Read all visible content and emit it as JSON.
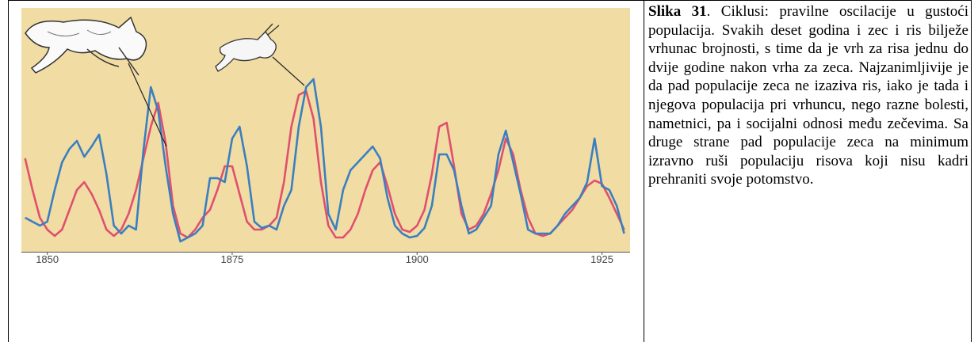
{
  "chart_data": {
    "type": "line",
    "x": [
      1847,
      1848,
      1849,
      1850,
      1851,
      1852,
      1853,
      1854,
      1855,
      1856,
      1857,
      1858,
      1859,
      1860,
      1861,
      1862,
      1863,
      1864,
      1865,
      1866,
      1867,
      1868,
      1869,
      1870,
      1871,
      1872,
      1873,
      1874,
      1875,
      1876,
      1877,
      1878,
      1879,
      1880,
      1881,
      1882,
      1883,
      1884,
      1885,
      1886,
      1887,
      1888,
      1889,
      1890,
      1891,
      1892,
      1893,
      1894,
      1895,
      1896,
      1897,
      1898,
      1899,
      1900,
      1901,
      1902,
      1903,
      1904,
      1905,
      1906,
      1907,
      1908,
      1909,
      1910,
      1911,
      1912,
      1913,
      1914,
      1915,
      1916,
      1917,
      1918,
      1919,
      1920,
      1921,
      1922,
      1923,
      1924,
      1925,
      1926,
      1927,
      1928
    ],
    "series": [
      {
        "color": "#3a7fc0",
        "values": [
          43,
          38,
          33,
          38,
          78,
          113,
          130,
          140,
          120,
          133,
          148,
          98,
          33,
          23,
          33,
          28,
          128,
          208,
          178,
          108,
          48,
          13,
          18,
          23,
          33,
          93,
          93,
          88,
          143,
          158,
          108,
          38,
          30,
          33,
          28,
          58,
          78,
          158,
          208,
          218,
          158,
          48,
          28,
          78,
          103,
          113,
          123,
          133,
          118,
          68,
          33,
          23,
          18,
          20,
          30,
          58,
          123,
          123,
          103,
          58,
          23,
          28,
          43,
          58,
          123,
          153,
          113,
          73,
          28,
          23,
          23,
          23,
          33,
          48,
          58,
          68,
          88,
          143,
          83,
          78,
          58,
          23
        ]
      },
      {
        "color": "#e0506e",
        "values": [
          118,
          78,
          43,
          28,
          20,
          28,
          53,
          78,
          88,
          73,
          53,
          28,
          20,
          28,
          48,
          78,
          118,
          158,
          188,
          138,
          58,
          23,
          18,
          28,
          43,
          53,
          78,
          108,
          108,
          73,
          38,
          28,
          28,
          33,
          43,
          88,
          158,
          198,
          203,
          168,
          88,
          33,
          18,
          18,
          28,
          48,
          78,
          103,
          113,
          83,
          48,
          28,
          25,
          33,
          53,
          98,
          158,
          163,
          108,
          48,
          28,
          33,
          48,
          73,
          103,
          143,
          123,
          78,
          43,
          23,
          20,
          23,
          33,
          43,
          53,
          68,
          83,
          90,
          86,
          68,
          48,
          28
        ]
      }
    ],
    "xlim": [
      1846.5,
      1928.8
    ],
    "xticks": [
      1850,
      1875,
      1900,
      1925
    ],
    "ylim": [
      0,
      308
    ]
  },
  "caption": {
    "label": "Slika 31",
    "text": ". Ciklusi: pravilne oscilacije u gustoći populacija. Svakih deset godina i zec i ris bilježe vrhunac brojnosti, s time da je vrh za risa jednu do dvije godine nakon vrha za zeca. Najzanimljivije je da pad populacije zeca ne izaziva ris, iako je tada i njegova populacija pri vrhuncu, nego razne bolesti, nametnici, pa i socijalni odnosi među zečevima. Sa druge strane pad populacije zeca na minimum izravno ruši populaciju risova koji nisu kadri prehraniti svoje potomstvo."
  }
}
